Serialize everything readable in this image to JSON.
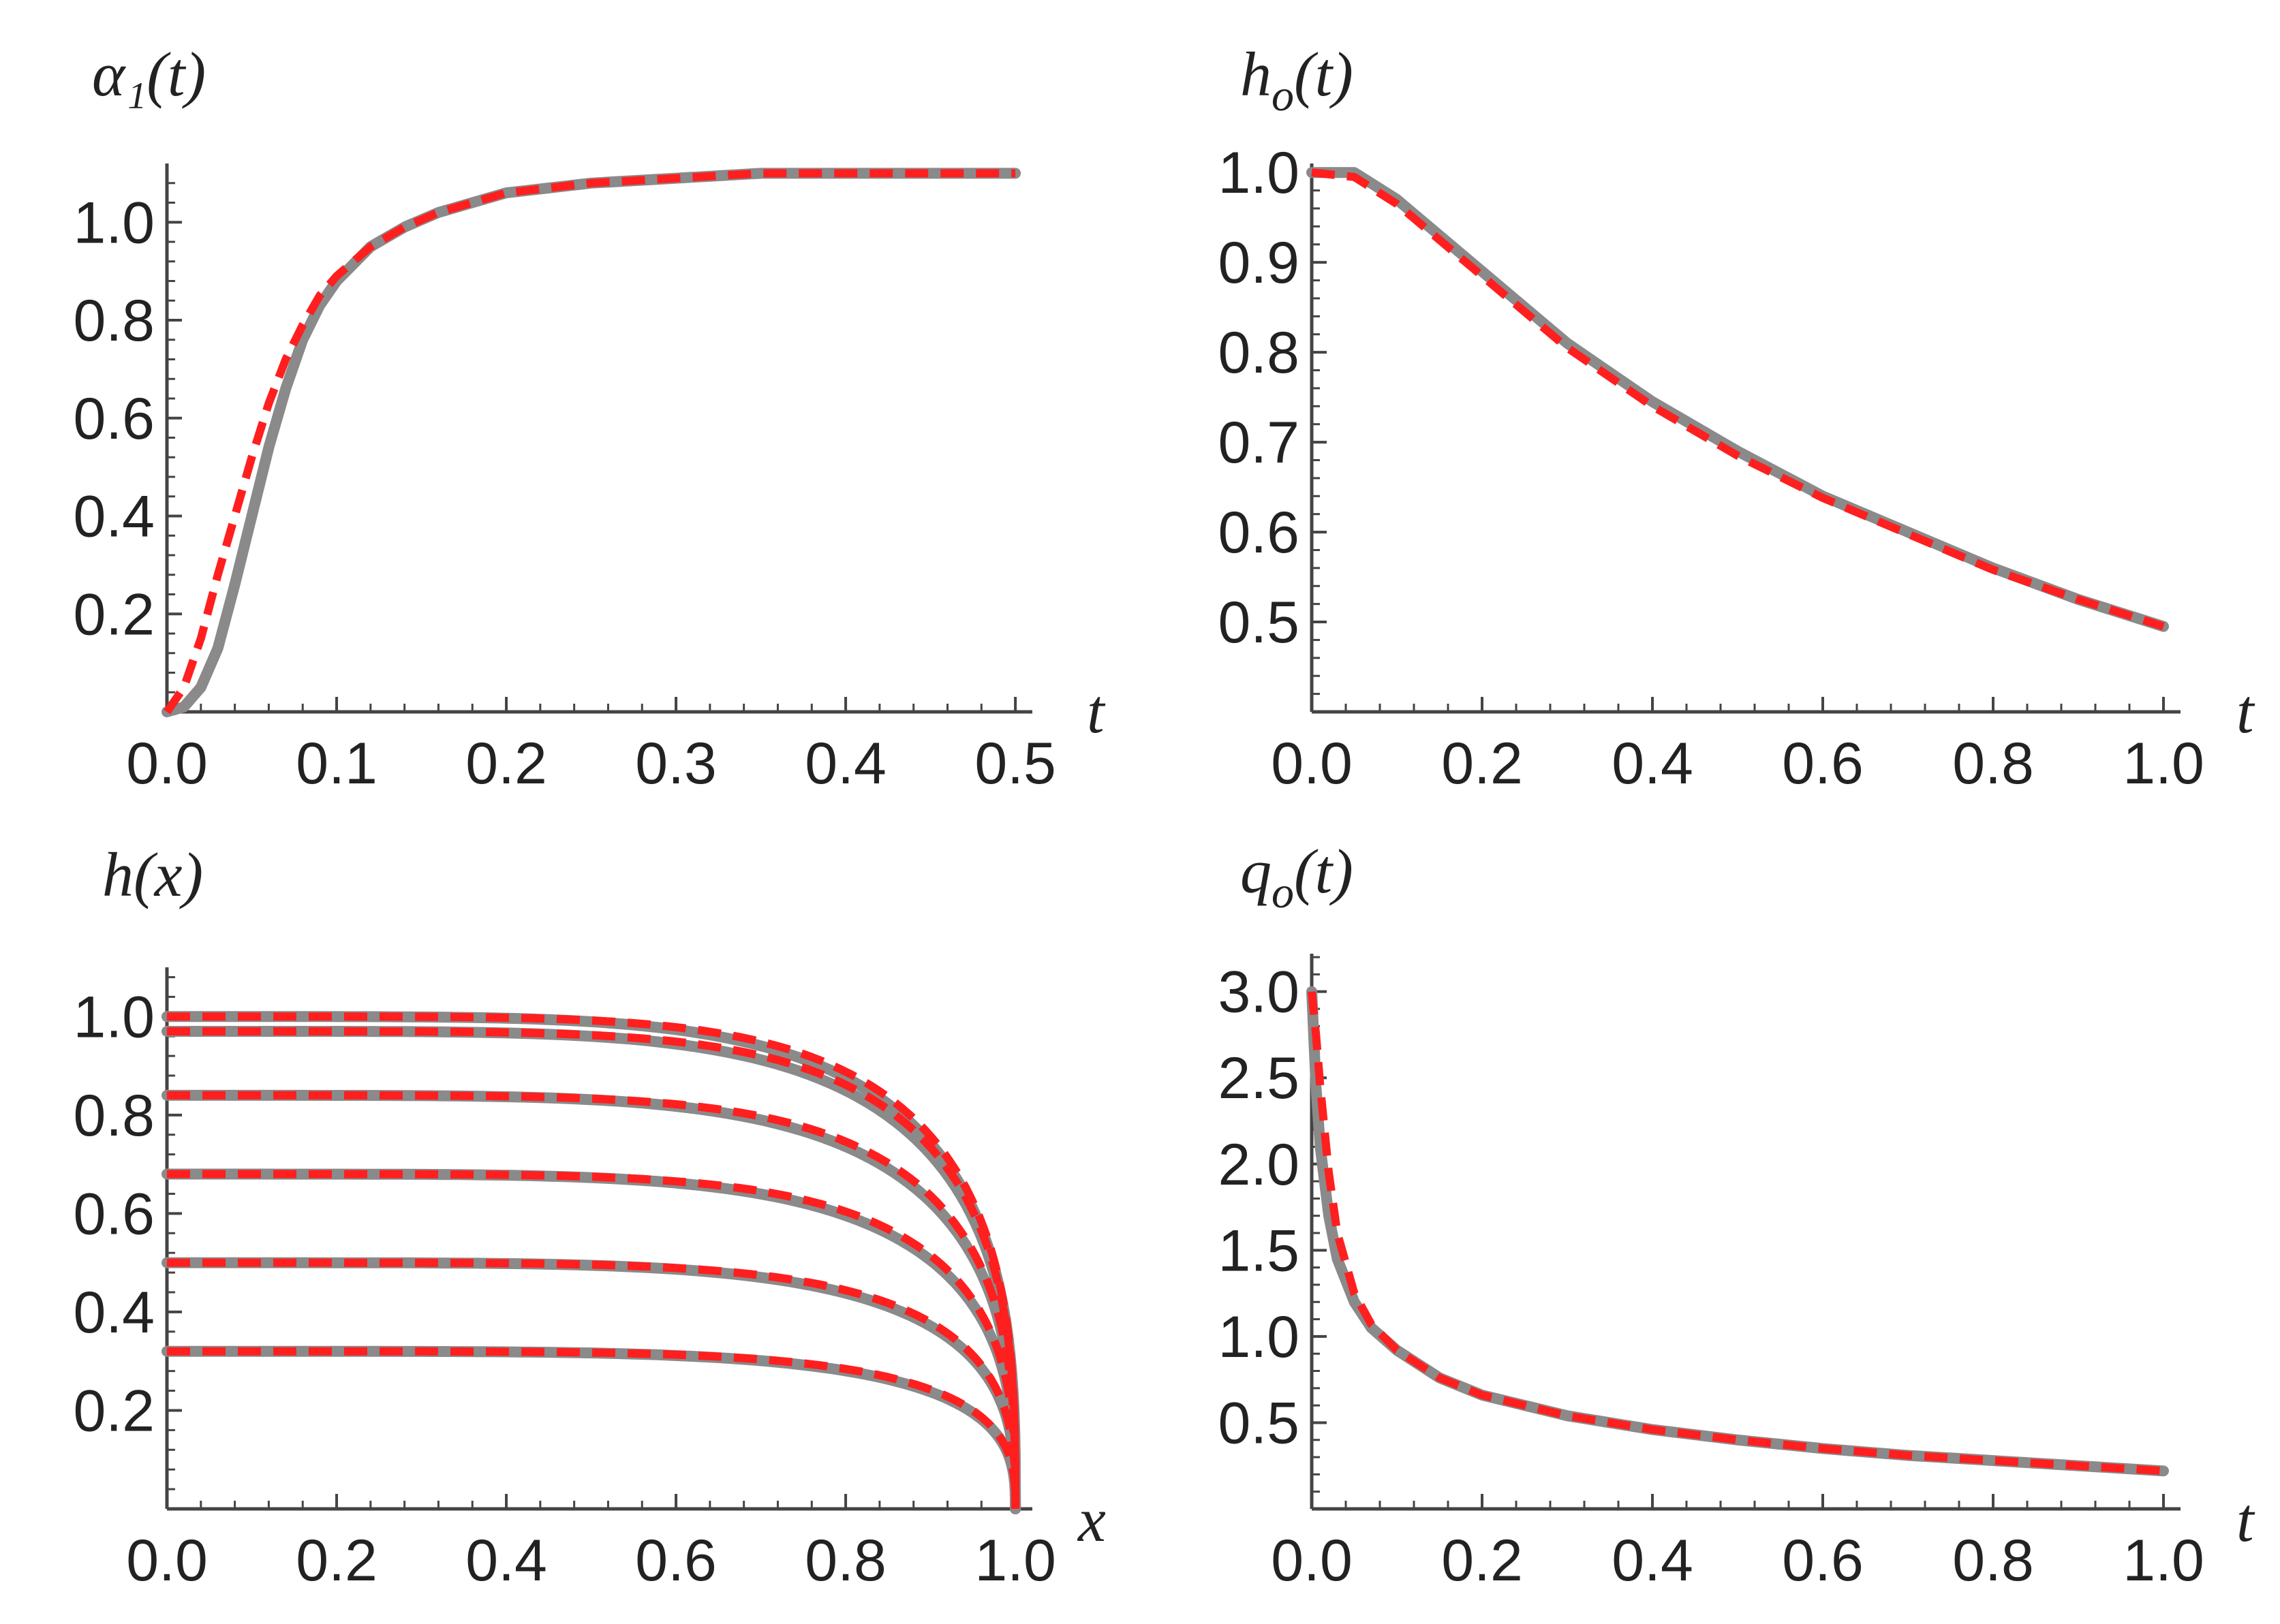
{
  "chart_data": [
    {
      "type": "line",
      "title": "",
      "ylabel": "α₁(t)",
      "xlabel": "t",
      "xlim": [
        0,
        0.5
      ],
      "ylim": [
        0,
        1.1
      ],
      "x_ticks": [
        "0.0",
        "0.1",
        "0.2",
        "0.3",
        "0.4",
        "0.5"
      ],
      "y_ticks": [
        "0.2",
        "0.4",
        "0.6",
        "0.8",
        "1.0"
      ],
      "series": [
        {
          "style": "solid-gray",
          "x": [
            0,
            0.01,
            0.02,
            0.03,
            0.04,
            0.05,
            0.06,
            0.07,
            0.08,
            0.09,
            0.1,
            0.12,
            0.14,
            0.16,
            0.18,
            0.2,
            0.25,
            0.3,
            0.35,
            0.4,
            0.45,
            0.5
          ],
          "y": [
            0,
            0.01,
            0.05,
            0.13,
            0.26,
            0.4,
            0.54,
            0.66,
            0.76,
            0.83,
            0.88,
            0.95,
            0.99,
            1.02,
            1.04,
            1.06,
            1.08,
            1.09,
            1.1,
            1.1,
            1.1,
            1.1
          ]
        },
        {
          "style": "dashed-red",
          "x": [
            0,
            0.01,
            0.02,
            0.03,
            0.04,
            0.05,
            0.06,
            0.07,
            0.08,
            0.09,
            0.1,
            0.12,
            0.14,
            0.16,
            0.18,
            0.2,
            0.25,
            0.3,
            0.35,
            0.4,
            0.45,
            0.5
          ],
          "y": [
            0,
            0.05,
            0.15,
            0.28,
            0.4,
            0.52,
            0.63,
            0.72,
            0.79,
            0.85,
            0.89,
            0.95,
            0.99,
            1.02,
            1.04,
            1.06,
            1.08,
            1.09,
            1.1,
            1.1,
            1.1,
            1.1
          ]
        }
      ]
    },
    {
      "type": "line",
      "title": "",
      "ylabel": "h",
      "ylabel_sub": "o",
      "ylabel_suffix": "(t)",
      "xlabel": "t",
      "xlim": [
        0,
        1
      ],
      "ylim": [
        0.4,
        1.0
      ],
      "x_ticks": [
        "0.0",
        "0.2",
        "0.4",
        "0.6",
        "0.8",
        "1.0"
      ],
      "y_ticks": [
        "0.5",
        "0.6",
        "0.7",
        "0.8",
        "0.9",
        "1.0"
      ],
      "series": [
        {
          "style": "solid-gray",
          "x": [
            0,
            0.05,
            0.1,
            0.15,
            0.2,
            0.3,
            0.4,
            0.5,
            0.6,
            0.7,
            0.8,
            0.9,
            1.0
          ],
          "y": [
            1.0,
            1.0,
            0.97,
            0.93,
            0.89,
            0.81,
            0.745,
            0.69,
            0.64,
            0.6,
            0.56,
            0.525,
            0.495
          ]
        },
        {
          "style": "dashed-red",
          "x": [
            0,
            0.05,
            0.1,
            0.15,
            0.2,
            0.3,
            0.4,
            0.5,
            0.6,
            0.7,
            0.8,
            0.9,
            1.0
          ],
          "y": [
            1.0,
            0.995,
            0.965,
            0.925,
            0.885,
            0.805,
            0.74,
            0.685,
            0.638,
            0.598,
            0.558,
            0.525,
            0.495
          ]
        }
      ]
    },
    {
      "type": "line",
      "title": "",
      "ylabel": "h(x)",
      "xlabel": "x",
      "xlim": [
        0,
        1
      ],
      "ylim": [
        0,
        1.1
      ],
      "x_ticks": [
        "0.0",
        "0.2",
        "0.4",
        "0.6",
        "0.8",
        "1.0"
      ],
      "y_ticks": [
        "0.2",
        "0.4",
        "0.6",
        "0.8",
        "1.0"
      ],
      "profile_heights": [
        1.0,
        0.97,
        0.84,
        0.68,
        0.5,
        0.32
      ],
      "profile_shape": "h0 * (1 - x^5)^(1/3)"
    },
    {
      "type": "line",
      "title": "",
      "ylabel": "q",
      "ylabel_sub": "o",
      "ylabel_suffix": "(t)",
      "xlabel": "t",
      "xlim": [
        0,
        1
      ],
      "ylim": [
        0,
        3.2
      ],
      "x_ticks": [
        "0.0",
        "0.2",
        "0.4",
        "0.6",
        "0.8",
        "1.0"
      ],
      "y_ticks": [
        "0.5",
        "1.0",
        "1.5",
        "2.0",
        "2.5",
        "3.0"
      ],
      "series": [
        {
          "style": "solid-gray",
          "x": [
            0,
            0.005,
            0.01,
            0.02,
            0.03,
            0.05,
            0.07,
            0.1,
            0.15,
            0.2,
            0.3,
            0.4,
            0.5,
            0.6,
            0.7,
            0.8,
            0.9,
            1.0
          ],
          "y": [
            3.0,
            2.45,
            2.1,
            1.7,
            1.45,
            1.2,
            1.05,
            0.92,
            0.76,
            0.66,
            0.54,
            0.46,
            0.4,
            0.35,
            0.31,
            0.28,
            0.25,
            0.22
          ]
        },
        {
          "style": "dashed-red",
          "x": [
            0,
            0.005,
            0.01,
            0.02,
            0.03,
            0.05,
            0.07,
            0.1,
            0.15,
            0.2,
            0.3,
            0.4,
            0.5,
            0.6,
            0.7,
            0.8,
            0.9,
            1.0
          ],
          "y": [
            3.0,
            2.75,
            2.45,
            1.95,
            1.6,
            1.25,
            1.07,
            0.92,
            0.76,
            0.66,
            0.54,
            0.46,
            0.4,
            0.35,
            0.31,
            0.28,
            0.25,
            0.22
          ]
        }
      ]
    }
  ]
}
